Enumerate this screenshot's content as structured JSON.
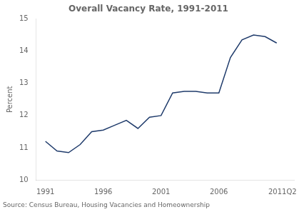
{
  "chart_data": {
    "type": "line",
    "title": "Overall Vacancy Rate, 1991-2011",
    "ylabel": "Percent",
    "annotations": [
      "Source: Census Bureau, Housing Vacancies and Homeownership"
    ],
    "x": [
      1991,
      1992,
      1993,
      1994,
      1995,
      1996,
      1997,
      1998,
      1999,
      2000,
      2001,
      2002,
      2003,
      2004,
      2005,
      2006,
      2007,
      2008,
      2009,
      2010,
      2011
    ],
    "values": [
      11.2,
      10.9,
      10.85,
      11.1,
      11.5,
      11.55,
      11.7,
      11.85,
      11.6,
      11.95,
      12.0,
      12.7,
      12.75,
      12.75,
      12.7,
      12.7,
      13.8,
      14.35,
      14.5,
      14.45,
      14.25
    ],
    "color": "#1F3B6B",
    "xlim": [
      1990.2,
      2012.5
    ],
    "xticks": [
      1991,
      1996,
      2001,
      2006,
      {
        "value": 2011.5,
        "label": "2011Q2"
      }
    ],
    "ylim": [
      10,
      15
    ],
    "yticks": [
      10,
      11,
      12,
      13,
      14,
      15
    ],
    "grid": false
  }
}
